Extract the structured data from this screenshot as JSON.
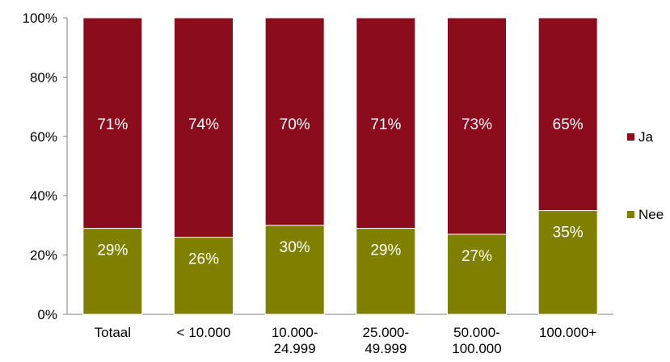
{
  "chart_data": {
    "type": "bar",
    "stacked": true,
    "percent": true,
    "categories": [
      [
        "Totaal"
      ],
      [
        "< 10.000"
      ],
      [
        "10.000-",
        "24.999"
      ],
      [
        "25.000-",
        "49.999"
      ],
      [
        "50.000-",
        "100.000"
      ],
      [
        "100.000+"
      ]
    ],
    "series": [
      {
        "name": "Nee",
        "color": "#808000",
        "values": [
          29,
          26,
          30,
          29,
          27,
          35
        ],
        "labels": [
          "29%",
          "26%",
          "30%",
          "29%",
          "27%",
          "35%"
        ]
      },
      {
        "name": "Ja",
        "color": "#8B0D1D",
        "values": [
          71,
          74,
          70,
          71,
          73,
          65
        ],
        "labels": [
          "71%",
          "74%",
          "70%",
          "71%",
          "73%",
          "65%"
        ]
      }
    ],
    "ylim": [
      0,
      100
    ],
    "yticks": [
      0,
      20,
      40,
      60,
      80,
      100
    ],
    "ytick_labels": [
      "0%",
      "20%",
      "40%",
      "60%",
      "80%",
      "100%"
    ],
    "legend_placement": "right",
    "legend": [
      "Ja",
      "Nee"
    ],
    "grid": false
  }
}
